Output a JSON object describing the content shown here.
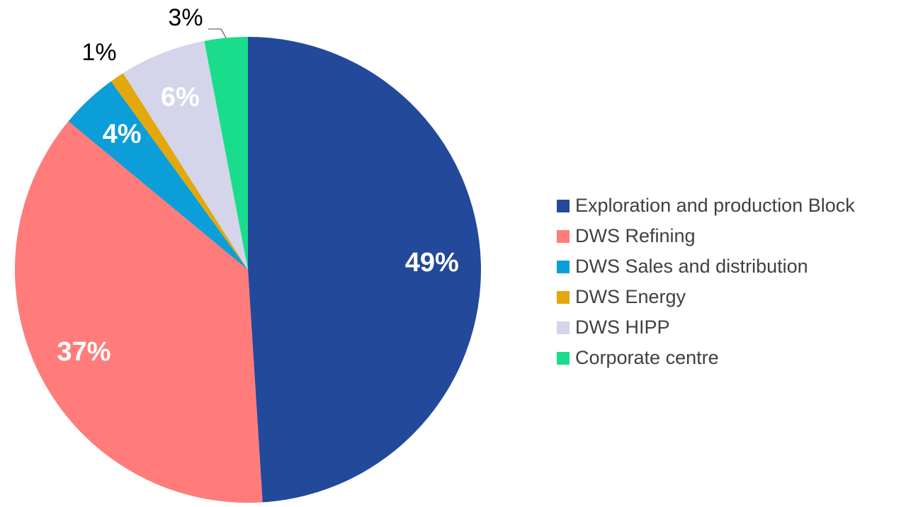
{
  "chart_data": {
    "type": "pie",
    "categories": [
      "Exploration and production Block",
      "DWS Refining",
      "DWS Sales and distribution",
      "DWS Energy",
      "DWS HIPP",
      "Corporate centre"
    ],
    "values": [
      49,
      37,
      4,
      1,
      6,
      3
    ],
    "value_labels": [
      "49%",
      "37%",
      "4%",
      "1%",
      "6%",
      "3%"
    ],
    "colors": [
      "#23499a",
      "#ff7c7a",
      "#0c9ed8",
      "#e2a80c",
      "#d4d5ea",
      "#19dd8a"
    ],
    "legend": "right"
  }
}
